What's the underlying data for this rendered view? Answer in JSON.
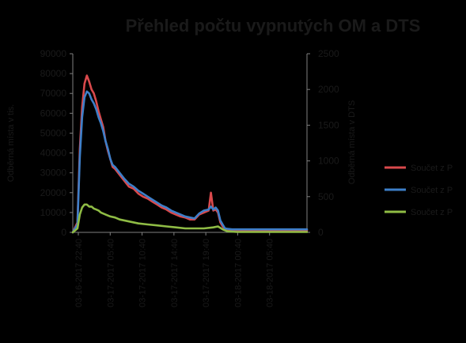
{
  "chart_data": {
    "type": "line",
    "title": "Přehled počtu vypnutých OM a DTS",
    "ylabel_left": "Odběrná místa v tis.",
    "ylabel_right": "Odběrná místa v DTS",
    "ylim_left": [
      0,
      90000
    ],
    "ylim_right": [
      0,
      2500
    ],
    "yticks_left": [
      "0",
      "10000",
      "20000",
      "30000",
      "40000",
      "50000",
      "60000",
      "70000",
      "80000",
      "90000"
    ],
    "yticks_right": [
      "0",
      "500",
      "1000",
      "1500",
      "2000",
      "2500"
    ],
    "x_ticks": [
      "03-16-2017 22:40",
      "03-17-2017 05:40",
      "03-17-2017 10:40",
      "03-17-2017 14:40",
      "03-17-2017 19:40",
      "03-18-2017 00:40",
      "03-18-2017 05:40"
    ],
    "x_domain": [
      0,
      100
    ],
    "legend_position": "right",
    "grid": false,
    "colors": {
      "background": "#000000",
      "axis": "#7f7f7f",
      "text": "#1a1a1a"
    },
    "series": [
      {
        "name": "Součet z P",
        "axis": "left",
        "color": "#d9494c",
        "x": [
          0,
          2,
          3,
          4,
          5,
          6,
          7,
          8,
          9,
          10,
          11,
          12,
          13,
          14,
          15,
          16,
          17,
          18,
          20,
          22,
          24,
          26,
          28,
          30,
          32,
          34,
          36,
          38,
          40,
          42,
          44,
          46,
          48,
          50,
          52,
          54,
          56,
          58,
          59,
          60,
          61,
          62,
          63,
          64,
          65,
          66,
          68,
          70,
          75,
          80,
          85,
          90,
          95,
          100
        ],
        "y": [
          0,
          5000,
          42000,
          63000,
          75000,
          79000,
          76000,
          72000,
          70000,
          66000,
          61000,
          57000,
          53000,
          46000,
          41000,
          37000,
          33000,
          32000,
          29000,
          26000,
          23000,
          22000,
          19500,
          18000,
          17000,
          15500,
          14000,
          12500,
          11500,
          10000,
          9000,
          8000,
          7500,
          6500,
          6500,
          9000,
          10000,
          11000,
          20000,
          11000,
          11500,
          10000,
          5000,
          3000,
          1500,
          1500,
          1000,
          1000,
          1000,
          1000,
          1000,
          1000,
          1000,
          1000
        ]
      },
      {
        "name": "Součet z P",
        "axis": "left",
        "color": "#3d7fc9",
        "x": [
          0,
          2,
          3,
          4,
          5,
          6,
          7,
          8,
          9,
          10,
          11,
          12,
          13,
          14,
          15,
          16,
          17,
          18,
          20,
          22,
          24,
          26,
          28,
          30,
          32,
          34,
          36,
          38,
          40,
          42,
          44,
          46,
          48,
          50,
          52,
          54,
          56,
          58,
          59,
          60,
          61,
          62,
          63,
          64,
          65,
          66,
          68,
          70,
          75,
          80,
          85,
          90,
          95,
          100
        ],
        "y": [
          0,
          4000,
          38000,
          58000,
          68000,
          71000,
          70000,
          67000,
          65000,
          62000,
          58000,
          55000,
          51000,
          46000,
          42000,
          37000,
          34000,
          33000,
          30000,
          27000,
          24500,
          23000,
          21000,
          19500,
          18000,
          16500,
          15000,
          13500,
          12500,
          11000,
          10000,
          9000,
          8000,
          7500,
          7000,
          9500,
          11000,
          11500,
          13000,
          11500,
          12500,
          11000,
          6000,
          4000,
          2000,
          1800,
          1500,
          1500,
          1500,
          1500,
          1500,
          1500,
          1500,
          1500
        ]
      },
      {
        "name": "Součet z P",
        "axis": "left",
        "color": "#8fbc45",
        "x": [
          0,
          2,
          3,
          4,
          5,
          6,
          7,
          8,
          9,
          10,
          11,
          12,
          14,
          16,
          18,
          20,
          24,
          28,
          32,
          36,
          40,
          44,
          48,
          52,
          56,
          60,
          62,
          64,
          66,
          70,
          75,
          80,
          85,
          90,
          95,
          100
        ],
        "y": [
          0,
          2000,
          9000,
          12500,
          14000,
          14000,
          13000,
          13000,
          12000,
          11500,
          11000,
          10000,
          9000,
          8000,
          7500,
          6500,
          5500,
          4500,
          4000,
          3500,
          3000,
          2500,
          2000,
          2000,
          2000,
          2500,
          3000,
          1500,
          500,
          200,
          200,
          200,
          200,
          200,
          200,
          200
        ]
      }
    ]
  }
}
